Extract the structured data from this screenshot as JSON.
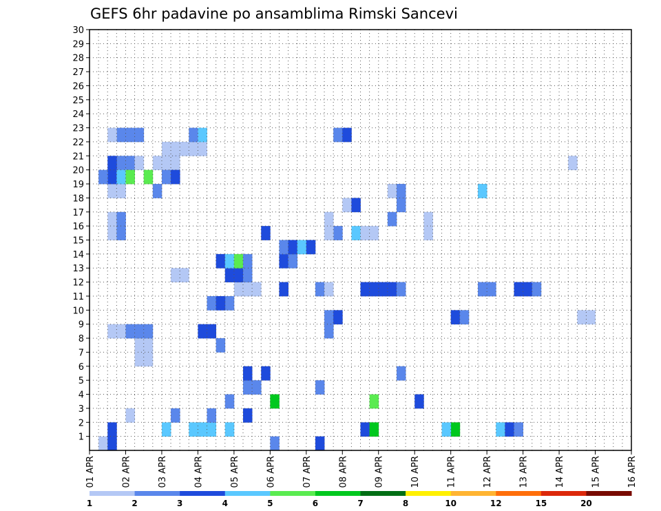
{
  "chart_data": {
    "type": "heatmap",
    "title": "GEFS 6hr padavine po ansamblima Rimski Sancevi",
    "xlabel": "",
    "ylabel": "",
    "x_ticks": [
      "01 APR",
      "02 APR",
      "03 APR",
      "04 APR",
      "05 APR",
      "06 APR",
      "07 APR",
      "08 APR",
      "09 APR",
      "10 APR",
      "11 APR",
      "12 APR",
      "13 APR",
      "14 APR",
      "15 APR",
      "16 APR"
    ],
    "y_ticks": [
      "1",
      "2",
      "3",
      "4",
      "5",
      "6",
      "7",
      "8",
      "9",
      "10",
      "11",
      "12",
      "13",
      "14",
      "15",
      "16",
      "17",
      "18",
      "19",
      "20",
      "21",
      "22",
      "23",
      "24",
      "25",
      "26",
      "27",
      "28",
      "29",
      "30"
    ],
    "x_steps": 60,
    "steps_per_day": 4,
    "y_range": [
      0,
      30
    ],
    "grid": true,
    "colorbar": {
      "labels": [
        "1",
        "2",
        "3",
        "4",
        "5",
        "6",
        "7",
        "8",
        "10",
        "12",
        "15",
        "20"
      ],
      "colors": [
        "#b4c8f5",
        "#5a87eb",
        "#1e4bdc",
        "#5ac8ff",
        "#5aeb50",
        "#00c81e",
        "#006e14",
        "#fff000",
        "#ffb432",
        "#ff6e0a",
        "#dc280a",
        "#780a00"
      ]
    },
    "cells": [
      [
        1,
        0,
        0
      ],
      [
        20,
        0,
        1
      ],
      [
        25,
        0,
        2
      ],
      [
        2,
        0,
        2
      ],
      [
        2,
        1,
        2
      ],
      [
        12,
        1,
        3
      ],
      [
        8,
        1,
        3
      ],
      [
        11,
        1,
        3
      ],
      [
        13,
        1,
        3
      ],
      [
        15,
        1,
        3
      ],
      [
        30,
        1,
        2
      ],
      [
        31,
        1,
        5
      ],
      [
        40,
        1,
        5
      ],
      [
        39,
        1,
        3
      ],
      [
        45,
        1,
        3
      ],
      [
        46,
        1,
        2
      ],
      [
        47,
        1,
        1
      ],
      [
        9,
        2,
        1
      ],
      [
        13,
        2,
        1
      ],
      [
        4,
        2,
        0
      ],
      [
        17,
        2,
        2
      ],
      [
        15,
        3,
        1
      ],
      [
        20,
        3,
        5
      ],
      [
        31,
        3,
        4
      ],
      [
        36,
        3,
        2
      ],
      [
        17,
        4,
        1
      ],
      [
        18,
        4,
        1
      ],
      [
        25,
        4,
        1
      ],
      [
        17,
        5,
        2
      ],
      [
        19,
        5,
        2
      ],
      [
        34,
        5,
        1
      ],
      [
        5,
        6,
        0
      ],
      [
        6,
        6,
        0
      ],
      [
        6,
        7,
        0
      ],
      [
        5,
        7,
        0
      ],
      [
        14,
        7,
        1
      ],
      [
        2,
        8,
        0
      ],
      [
        3,
        8,
        0
      ],
      [
        4,
        8,
        1
      ],
      [
        5,
        8,
        1
      ],
      [
        6,
        8,
        1
      ],
      [
        12,
        8,
        2
      ],
      [
        13,
        8,
        2
      ],
      [
        26,
        8,
        1
      ],
      [
        26,
        9,
        1
      ],
      [
        27,
        9,
        2
      ],
      [
        40,
        9,
        2
      ],
      [
        41,
        9,
        1
      ],
      [
        55,
        9,
        0
      ],
      [
        54,
        9,
        0
      ],
      [
        15,
        10,
        1
      ],
      [
        13,
        10,
        1
      ],
      [
        14,
        10,
        2
      ],
      [
        16,
        11,
        0
      ],
      [
        17,
        11,
        0
      ],
      [
        18,
        11,
        0
      ],
      [
        21,
        11,
        2
      ],
      [
        25,
        11,
        1
      ],
      [
        26,
        11,
        0
      ],
      [
        47,
        11,
        2
      ],
      [
        48,
        11,
        2
      ],
      [
        49,
        11,
        1
      ],
      [
        30,
        11,
        2
      ],
      [
        31,
        11,
        2
      ],
      [
        32,
        11,
        2
      ],
      [
        33,
        11,
        2
      ],
      [
        34,
        11,
        1
      ],
      [
        43,
        11,
        1
      ],
      [
        44,
        11,
        1
      ],
      [
        9,
        12,
        0
      ],
      [
        10,
        12,
        0
      ],
      [
        15,
        12,
        2
      ],
      [
        16,
        12,
        2
      ],
      [
        17,
        12,
        1
      ],
      [
        14,
        13,
        2
      ],
      [
        15,
        13,
        3
      ],
      [
        16,
        13,
        4
      ],
      [
        17,
        13,
        1
      ],
      [
        21,
        13,
        2
      ],
      [
        22,
        13,
        1
      ],
      [
        21,
        14,
        1
      ],
      [
        22,
        14,
        2
      ],
      [
        23,
        14,
        3
      ],
      [
        24,
        14,
        2
      ],
      [
        2,
        15,
        0
      ],
      [
        2,
        16,
        0
      ],
      [
        3,
        15,
        1
      ],
      [
        3,
        16,
        1
      ],
      [
        19,
        15,
        2
      ],
      [
        27,
        15,
        1
      ],
      [
        26,
        15,
        0
      ],
      [
        26,
        16,
        0
      ],
      [
        29,
        15,
        3
      ],
      [
        37,
        15,
        0
      ],
      [
        31,
        15,
        0
      ],
      [
        30,
        15,
        0
      ],
      [
        37,
        16,
        0
      ],
      [
        33,
        16,
        1
      ],
      [
        7,
        18,
        1
      ],
      [
        2,
        18,
        0
      ],
      [
        3,
        18,
        0
      ],
      [
        3,
        18,
        0
      ],
      [
        33,
        18,
        0
      ],
      [
        43,
        18,
        3
      ],
      [
        34,
        18,
        1
      ],
      [
        34,
        17,
        1
      ],
      [
        28,
        17,
        0
      ],
      [
        29,
        17,
        2
      ],
      [
        9,
        20,
        0
      ],
      [
        8,
        20,
        0
      ],
      [
        7,
        20,
        0
      ],
      [
        3,
        20,
        1
      ],
      [
        2,
        20,
        2
      ],
      [
        4,
        20,
        1
      ],
      [
        5,
        20,
        0
      ],
      [
        53,
        20,
        0
      ],
      [
        8,
        19,
        1
      ],
      [
        9,
        19,
        2
      ],
      [
        2,
        19,
        2
      ],
      [
        1,
        19,
        1
      ],
      [
        3,
        19,
        3
      ],
      [
        4,
        19,
        4
      ],
      [
        6,
        19,
        4
      ],
      [
        9,
        21,
        1
      ],
      [
        8,
        21,
        0
      ],
      [
        9,
        21,
        0
      ],
      [
        10,
        21,
        0
      ],
      [
        11,
        21,
        0
      ],
      [
        12,
        21,
        0
      ],
      [
        11,
        22,
        1
      ],
      [
        12,
        22,
        3
      ],
      [
        27,
        22,
        1
      ],
      [
        28,
        22,
        2
      ],
      [
        4,
        22,
        1
      ],
      [
        3,
        22,
        1
      ],
      [
        5,
        22,
        1
      ],
      [
        2,
        22,
        0
      ]
    ]
  }
}
